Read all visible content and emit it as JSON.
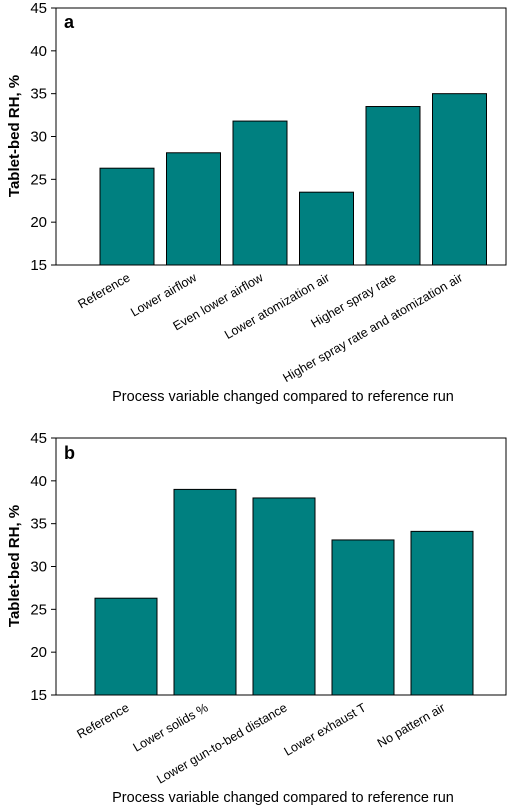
{
  "colors": {
    "bar": "#008080"
  },
  "chart_data": [
    {
      "type": "bar",
      "panel_label": "a",
      "categories": [
        "Reference",
        "Lower airflow",
        "Even lower airflow",
        "Lower atomization air",
        "Higher spray rate",
        "Higher spray rate and atomization air"
      ],
      "values": [
        26.3,
        28.1,
        31.8,
        23.5,
        33.5,
        35.0
      ],
      "ylabel": "Tablet-bed RH, %",
      "xlabel": "Process variable changed compared to reference run",
      "ylim": [
        15,
        45
      ],
      "yticks": [
        15,
        20,
        25,
        30,
        35,
        40,
        45
      ],
      "grid": false,
      "legend": "none"
    },
    {
      "type": "bar",
      "panel_label": "b",
      "categories": [
        "Reference",
        "Lower solids %",
        "Lower gun-to-bed distance",
        "Lower exhaust T",
        "No pattern air"
      ],
      "values": [
        26.3,
        39.0,
        38.0,
        33.1,
        34.1
      ],
      "ylabel": "Tablet-bed RH, %",
      "xlabel": "Process variable changed compared to reference run",
      "ylim": [
        15,
        45
      ],
      "yticks": [
        15,
        20,
        25,
        30,
        35,
        40,
        45
      ],
      "grid": false,
      "legend": "none"
    }
  ]
}
